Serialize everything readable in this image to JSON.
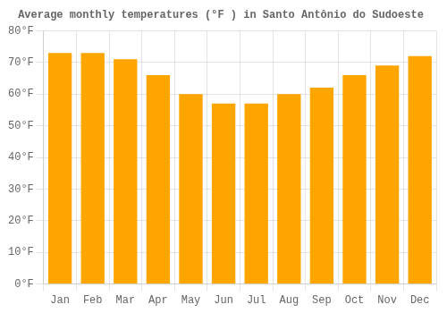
{
  "chart_data": {
    "type": "bar",
    "title": "Average monthly temperatures (°F ) in Santo Antônio do Sudoeste",
    "categories": [
      "Jan",
      "Feb",
      "Mar",
      "Apr",
      "May",
      "Jun",
      "Jul",
      "Aug",
      "Sep",
      "Oct",
      "Nov",
      "Dec"
    ],
    "values": [
      73,
      73,
      71,
      66,
      60,
      57,
      57,
      60,
      62,
      66,
      69,
      72
    ],
    "color": "#FFA500",
    "ylim": [
      0,
      80
    ],
    "yticks": [
      {
        "value": 0,
        "label": "0°F"
      },
      {
        "value": 10,
        "label": "10°F"
      },
      {
        "value": 20,
        "label": "20°F"
      },
      {
        "value": 30,
        "label": "30°F"
      },
      {
        "value": 40,
        "label": "40°F"
      },
      {
        "value": 50,
        "label": "50°F"
      },
      {
        "value": 60,
        "label": "60°F"
      },
      {
        "value": 70,
        "label": "70°F"
      },
      {
        "value": 80,
        "label": "80°F"
      }
    ],
    "grid": true
  }
}
